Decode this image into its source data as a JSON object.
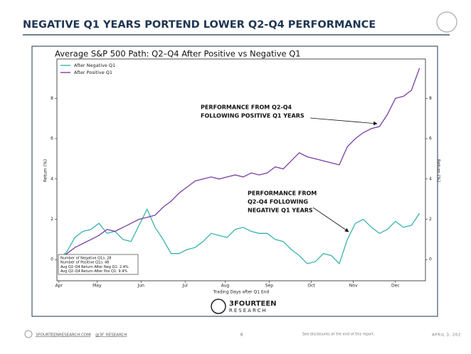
{
  "header": {
    "title": "NEGATIVE Q1 YEARS PORTEND LOWER Q2-Q4 PERFORMANCE"
  },
  "logo": {
    "name": "3FOURTEEN",
    "sub": "RESEARCH"
  },
  "footer": {
    "website": "3FOURTEENRESEARCH.COM",
    "handle": "@3F_RESEARCH",
    "page": "6",
    "disclaimer": "See disclosures at the end of this report.",
    "date": "APRIL 3, 202"
  },
  "chart_data": {
    "type": "line",
    "title": "Average S&P 500 Path: Q2–Q4 After Positive vs Negative Q1",
    "xlabel": "Trading Days after Q1 End",
    "ylabel": "Return (%)",
    "x": [
      0,
      4,
      8,
      12,
      16,
      20,
      24,
      28,
      32,
      36,
      40,
      44,
      48,
      52,
      56,
      60,
      64,
      68,
      72,
      76,
      80,
      84,
      88,
      92,
      96,
      100,
      104,
      108,
      112,
      116,
      120,
      124,
      128,
      132,
      136,
      140,
      144,
      148,
      152,
      156,
      160,
      164,
      168,
      172,
      176,
      180
    ],
    "xlim": [
      -1,
      183
    ],
    "xticks": [
      {
        "value": 0,
        "label": "Apr"
      },
      {
        "value": 19,
        "label": "May"
      },
      {
        "value": 41,
        "label": "Jun"
      },
      {
        "value": 63,
        "label": "Jul"
      },
      {
        "value": 83,
        "label": "Aug"
      },
      {
        "value": 105,
        "label": "Sep"
      },
      {
        "value": 126,
        "label": "Oct"
      },
      {
        "value": 147,
        "label": "Nov"
      },
      {
        "value": 168,
        "label": "Dec"
      }
    ],
    "ylim": [
      -1.05,
      9.95
    ],
    "yticks": [
      0,
      2,
      4,
      6,
      8
    ],
    "series": [
      {
        "name": "After Negative Q1",
        "color": "#3bb3ab",
        "values": [
          0,
          0.4,
          1.1,
          1.4,
          1.5,
          1.8,
          1.3,
          1.4,
          1.0,
          0.9,
          1.7,
          2.5,
          1.6,
          1.0,
          0.3,
          0.3,
          0.5,
          0.6,
          0.9,
          1.3,
          1.2,
          1.1,
          1.5,
          1.6,
          1.4,
          1.3,
          1.3,
          1.0,
          0.9,
          0.5,
          0.2,
          -0.2,
          -0.1,
          0.3,
          0.2,
          -0.2,
          1.0,
          1.8,
          2.0,
          1.6,
          1.3,
          1.5,
          1.9,
          1.6,
          1.7,
          2.3
        ]
      },
      {
        "name": "After Positive Q1",
        "color": "#7a3fa3",
        "values": [
          0,
          0.3,
          0.6,
          0.8,
          1.0,
          1.2,
          1.5,
          1.4,
          1.6,
          1.8,
          2.0,
          2.1,
          2.2,
          2.6,
          2.9,
          3.3,
          3.6,
          3.9,
          4.0,
          4.1,
          4.0,
          4.1,
          4.2,
          4.1,
          4.3,
          4.2,
          4.3,
          4.6,
          4.5,
          4.9,
          5.3,
          5.1,
          5.0,
          4.9,
          4.8,
          4.7,
          5.6,
          6.0,
          6.3,
          6.5,
          6.6,
          7.2,
          8.0,
          8.1,
          8.4,
          9.5
        ]
      }
    ],
    "legend": "upper left",
    "annotations": [
      {
        "lines": [
          "PERFORMANCE FROM Q2-Q4",
          "FOLLOWING POSITIVE Q1 YEARS"
        ]
      },
      {
        "lines": [
          "PERFORMANCE FROM",
          "Q2-Q4  FOLLOWING",
          "NEGATIVE Q1 YEARS"
        ]
      }
    ],
    "stats_box": [
      "Number of Negative Q1s: 28",
      "Number of Positive Q1s: 48",
      "Avg Q2–Q4 Return After Neg Q1: 2.4%",
      "Avg Q2–Q4 Return After Pos Q1: 9.4%"
    ]
  }
}
